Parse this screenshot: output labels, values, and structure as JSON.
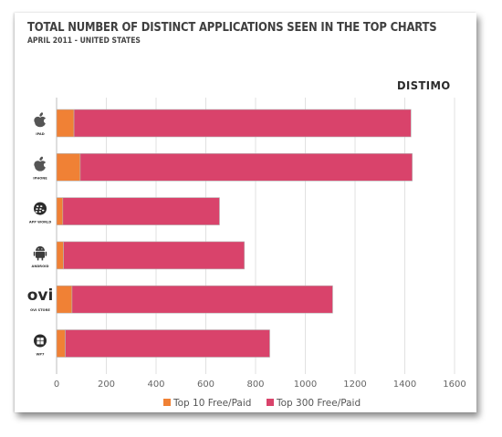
{
  "chart_data": {
    "type": "bar",
    "orientation": "horizontal",
    "stacked": true,
    "title": "TOTAL NUMBER OF DISTINCT APPLICATIONS SEEN IN THE TOP CHARTS",
    "subtitle": "APRIL 2011  - UNITED STATES",
    "brand": "DISTIMO",
    "categories": [
      "IPAD",
      "IPHONE",
      "APP WORLD",
      "ANDROID",
      "OVI STORE",
      "WP7"
    ],
    "category_icons": [
      "apple-icon",
      "apple-icon",
      "blackberry-icon",
      "android-icon",
      "ovi-icon",
      "windows-icon"
    ],
    "ovi_logo_text": "ovi",
    "series": [
      {
        "name": "Top 10 Free/Paid",
        "values": [
          70,
          95,
          25,
          28,
          62,
          35
        ],
        "color": "#f08135"
      },
      {
        "name": "Top 300 Free/Paid",
        "values": [
          1355,
          1335,
          630,
          727,
          1048,
          822
        ],
        "color": "#d9436b"
      }
    ],
    "xlim": [
      0,
      1600
    ],
    "xticks": [
      0,
      200,
      400,
      600,
      800,
      1000,
      1200,
      1400,
      1600
    ],
    "grid": true,
    "legend_position": "bottom"
  }
}
